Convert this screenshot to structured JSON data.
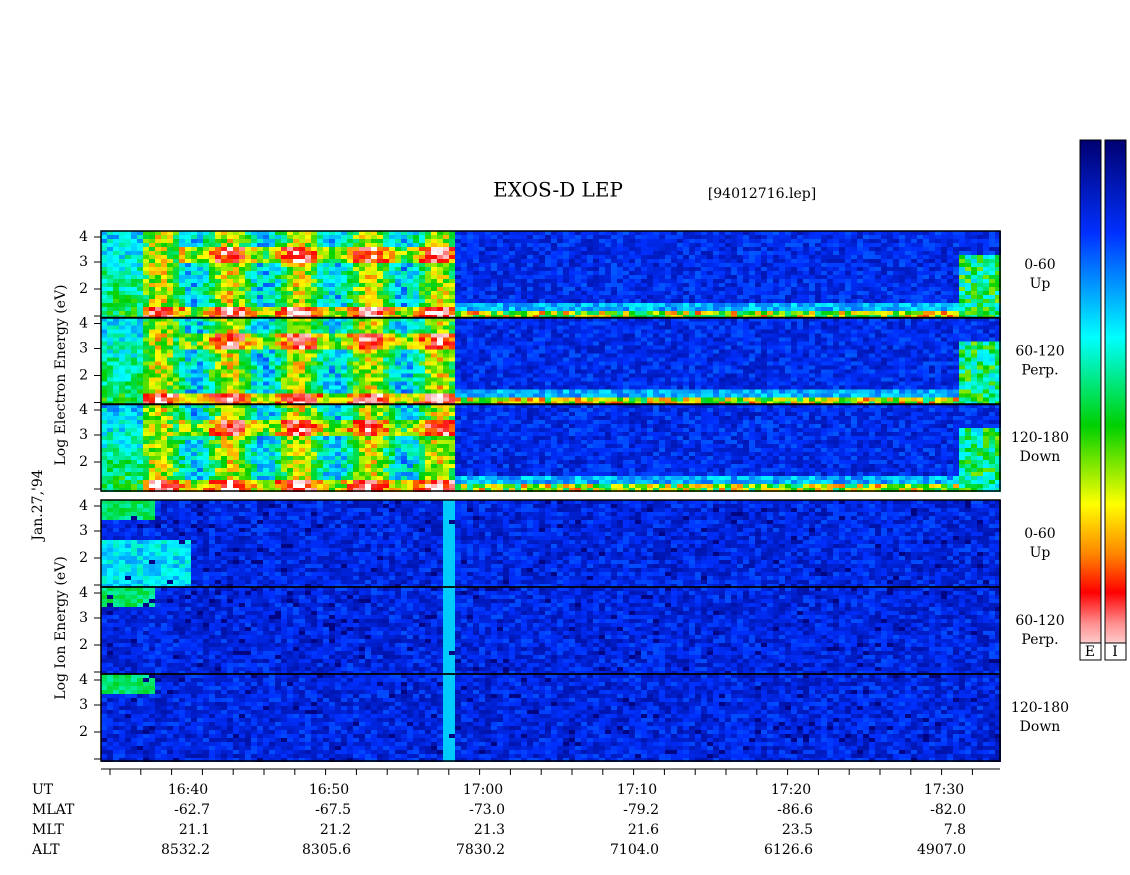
{
  "header": {
    "title": "EXOS-D LEP",
    "file": "[94012716.lep]"
  },
  "axis_labels": {
    "electron": "Log Electron Energy (eV)",
    "date": "Jan.27,'94",
    "ion": "Log Ion Energy (eV)"
  },
  "y_ticks": [
    "4",
    "3",
    "2"
  ],
  "electron_panels": [
    {
      "range": "0-60",
      "dir": "Up"
    },
    {
      "range": "60-120",
      "dir": "Perp."
    },
    {
      "range": "120-180",
      "dir": "Down"
    }
  ],
  "ion_panels": [
    {
      "range": "0-60",
      "dir": "Up"
    },
    {
      "range": "60-120",
      "dir": "Perp."
    },
    {
      "range": "120-180",
      "dir": "Down"
    }
  ],
  "time_table": {
    "row_labels": [
      "UT",
      "MLAT",
      "MLT",
      "ALT"
    ],
    "columns": [
      [
        "16:40",
        "-62.7",
        "21.1",
        "8532.2"
      ],
      [
        "16:50",
        "-67.5",
        "21.2",
        "8305.6"
      ],
      [
        "17:00",
        "-73.0",
        "21.3",
        "7830.2"
      ],
      [
        "17:10",
        "-79.2",
        "21.6",
        "7104.0"
      ],
      [
        "17:20",
        "-86.6",
        "23.5",
        "6126.6"
      ],
      [
        "17:30",
        "-82.0",
        "7.8",
        "4907.0"
      ]
    ]
  },
  "colorbar_labels": [
    "E",
    "I"
  ]
}
